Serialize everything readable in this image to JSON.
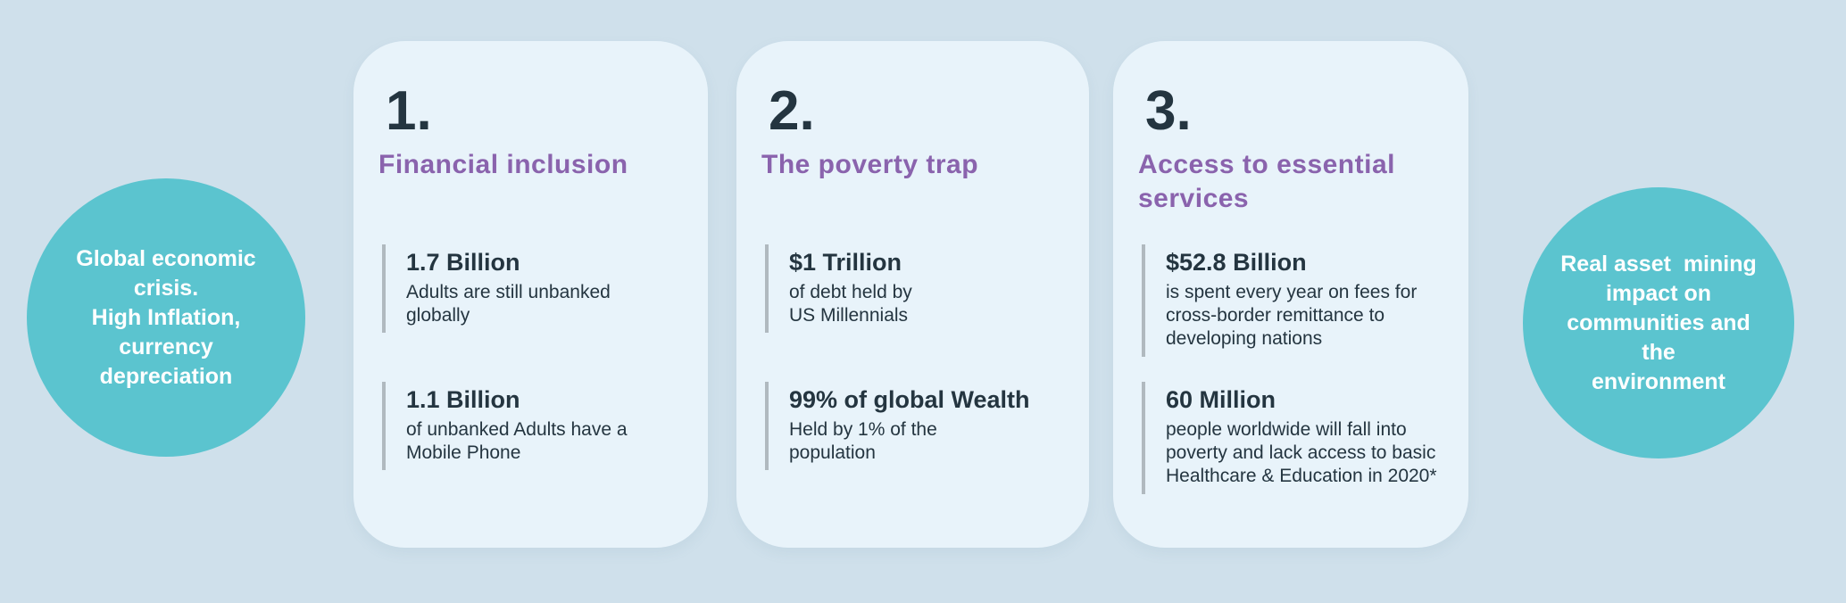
{
  "palette": {
    "background": "#cfe0eb",
    "card_background": "#e8f3fa",
    "bubble_teal": "#5bc4cf",
    "heading_purple": "#8a63ad",
    "text_navy": "#243540",
    "stat_bar_gray": "#b0b9bf",
    "bubble_text_white": "#ffffff"
  },
  "left_bubble": {
    "lines": [
      "Global economic",
      "crisis.",
      "High Inflation,",
      "currency",
      "depreciation"
    ]
  },
  "right_bubble": {
    "lines": [
      "Real asset  mining",
      "impact on",
      "communities and the",
      "environment"
    ]
  },
  "cards": [
    {
      "number": "1.",
      "title": "Financial inclusion",
      "stats": [
        {
          "value": "1.7 Billion",
          "desc": "Adults are still unbanked\nglobally"
        },
        {
          "value": "1.1 Billion",
          "desc": "of unbanked Adults have a\nMobile Phone"
        }
      ]
    },
    {
      "number": "2.",
      "title": "The poverty trap",
      "stats": [
        {
          "value": "$1 Trillion",
          "desc": "of debt held by\nUS Millennials"
        },
        {
          "value": "99% of global Wealth",
          "desc": "Held by 1% of the\npopulation"
        }
      ]
    },
    {
      "number": "3.",
      "title": "Access to essential\nservices",
      "stats": [
        {
          "value": "$52.8 Billion",
          "desc": "is spent every year on fees for\ncross-border remittance to\ndeveloping nations"
        },
        {
          "value": "60 Million",
          "desc": "people worldwide will fall into\npoverty and lack access to basic\nHealthcare & Education in 2020*"
        }
      ]
    }
  ]
}
